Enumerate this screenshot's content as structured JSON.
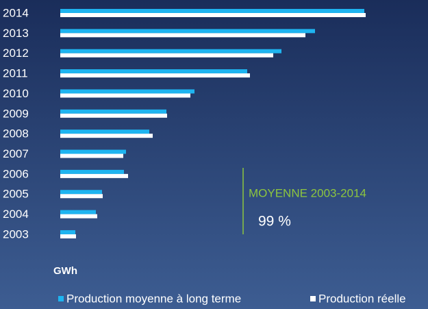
{
  "chart_data": {
    "type": "bar",
    "orientation": "horizontal",
    "categories": [
      "2014",
      "2013",
      "2012",
      "2011",
      "2010",
      "2009",
      "2008",
      "2007",
      "2006",
      "2005",
      "2004",
      "2003"
    ],
    "series": [
      {
        "name": "Production moyenne à long terme",
        "color": "#1eb4f0",
        "values": [
          444,
          372,
          323,
          273,
          196,
          155,
          130,
          96,
          93,
          61,
          52,
          22
        ]
      },
      {
        "name": "Production réelle",
        "color": "#ffffff",
        "values": [
          446,
          358,
          311,
          277,
          190,
          156,
          135,
          92,
          99,
          62,
          54,
          23
        ]
      }
    ],
    "xlim": [
      0,
      460
    ],
    "axis_label": "GWh",
    "annotation": {
      "title": "MOYENNE 2003-2014",
      "value": "99 %",
      "color": "#8dc63f"
    },
    "legend": "bottom"
  }
}
